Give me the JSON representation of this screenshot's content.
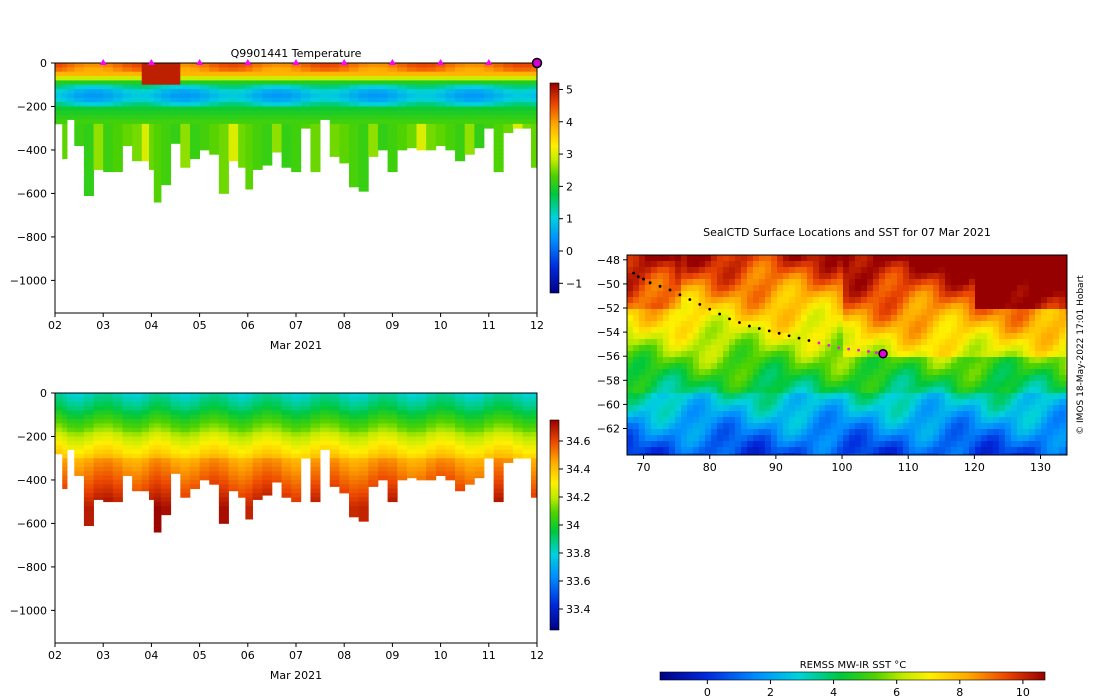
{
  "chart_data": [
    {
      "type": "heatmap",
      "title": "Q9901441  Temperature",
      "xlabel": "Mar 2021",
      "ylabel": "",
      "xlim": [
        2,
        12
      ],
      "ylim": [
        -1150,
        0
      ],
      "x_ticks": [
        "02",
        "03",
        "04",
        "05",
        "06",
        "07",
        "08",
        "09",
        "10",
        "11",
        "12"
      ],
      "y_ticks": [
        0,
        -200,
        -400,
        -600,
        -800,
        -1000
      ],
      "colorbar": {
        "min": -1.3,
        "max": 5.2,
        "ticks": [
          5,
          4,
          3,
          2,
          1,
          0,
          -1
        ]
      },
      "surface_markers_x": [
        3,
        4,
        5,
        6,
        7,
        8,
        9,
        10,
        11
      ],
      "current_marker_x": 12,
      "profile_times": [
        2.1,
        2.2,
        2.3,
        2.5,
        2.7,
        2.9,
        3.1,
        3.3,
        3.5,
        3.7,
        3.9,
        4.0,
        4.1,
        4.3,
        4.5,
        4.7,
        4.9,
        5.1,
        5.3,
        5.5,
        5.7,
        5.9,
        6.0,
        6.2,
        6.4,
        6.6,
        6.8,
        7.0,
        7.2,
        7.4,
        7.6,
        7.8,
        8.0,
        8.2,
        8.4,
        8.6,
        8.8,
        9.0,
        9.2,
        9.4,
        9.6,
        9.8,
        10.0,
        10.2,
        10.4,
        10.6,
        10.8,
        11.0,
        11.2,
        11.4,
        11.6,
        11.8,
        11.95
      ],
      "profile_depths": [
        280,
        440,
        260,
        380,
        610,
        490,
        500,
        500,
        380,
        450,
        450,
        490,
        640,
        560,
        370,
        480,
        440,
        400,
        420,
        600,
        450,
        480,
        580,
        490,
        470,
        410,
        480,
        500,
        300,
        500,
        260,
        430,
        460,
        570,
        590,
        430,
        400,
        500,
        400,
        390,
        400,
        400,
        380,
        400,
        450,
        420,
        390,
        300,
        500,
        320,
        300,
        300,
        480
      ],
      "data_range": "-1 to 5 °C; warm surface layer (~3-5 °C), cold core near 100-200 m (~0-1 °C), ~2 °C below"
    },
    {
      "type": "heatmap",
      "title": "",
      "xlabel": "Mar 2021",
      "ylabel": "",
      "xlim": [
        2,
        12
      ],
      "ylim": [
        -1150,
        0
      ],
      "x_ticks": [
        "02",
        "03",
        "04",
        "05",
        "06",
        "07",
        "08",
        "09",
        "10",
        "11",
        "12"
      ],
      "y_ticks": [
        0,
        -200,
        -400,
        -600,
        -800,
        -1000
      ],
      "colorbar": {
        "min": 33.25,
        "max": 34.75,
        "ticks": [
          34.6,
          34.4,
          34.2,
          34,
          33.8,
          33.6,
          33.4
        ]
      },
      "data_range": "33.8 near surface increasing to ~34.7 at depth"
    },
    {
      "type": "heatmap",
      "title": "SealCTD Surface Locations and SST for 07 Mar 2021",
      "xlabel": "",
      "ylabel": "",
      "xlim": [
        67.5,
        134
      ],
      "ylim": [
        -64.2,
        -47.6
      ],
      "x_ticks": [
        70,
        80,
        90,
        100,
        110,
        120,
        130
      ],
      "y_ticks": [
        -48,
        -50,
        -52,
        -54,
        -56,
        -58,
        -60,
        -62
      ],
      "colorbar": {
        "label": "REMSS MW-IR SST °C",
        "min": -1.5,
        "max": 10.7,
        "ticks": [
          0,
          2,
          4,
          6,
          8,
          10
        ]
      },
      "track_lon": [
        68.5,
        69.2,
        70.0,
        71.0,
        72.5,
        74.0,
        75.5,
        77.0,
        78.5,
        80.0,
        81.5,
        83.0,
        84.5,
        86.0,
        87.5,
        89.0,
        90.5,
        92.0,
        93.5,
        95.0,
        96.5,
        98.0,
        99.5,
        101.0,
        102.5,
        104.0,
        105.2,
        106.2
      ],
      "track_lat": [
        -49.1,
        -49.4,
        -49.6,
        -49.9,
        -50.2,
        -50.5,
        -50.9,
        -51.3,
        -51.7,
        -52.1,
        -52.5,
        -52.9,
        -53.2,
        -53.5,
        -53.7,
        -53.9,
        -54.1,
        -54.3,
        -54.5,
        -54.7,
        -54.9,
        -55.1,
        -55.3,
        -55.4,
        -55.5,
        -55.6,
        -55.7,
        -55.8
      ],
      "current_position": [
        106.2,
        -55.8
      ]
    }
  ],
  "credit": "© IMOS 18-May-2022 17:01 Hobart"
}
